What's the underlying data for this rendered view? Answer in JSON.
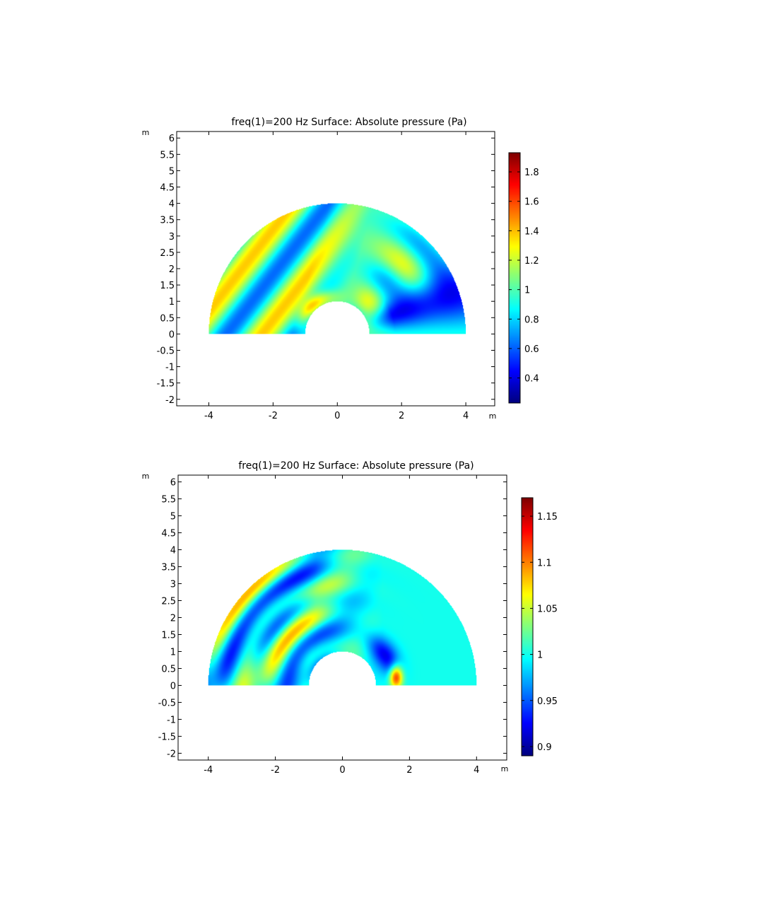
{
  "chart_data": [
    {
      "type": "heatmap",
      "title": "freq(1)=200 Hz   Surface: Absolute pressure (Pa)",
      "x_unit": "m",
      "y_unit": "m",
      "xlim": [
        -5,
        4.9
      ],
      "ylim": [
        -2.2,
        6.2
      ],
      "x_ticks": [
        -4,
        -2,
        0,
        2,
        4
      ],
      "y_ticks": [
        6,
        5.5,
        5,
        4.5,
        4,
        3.5,
        3,
        2.5,
        2,
        1.5,
        1,
        0.5,
        0,
        -0.5,
        -1,
        -1.5,
        -2
      ],
      "domain": {
        "shape": "half-annulus",
        "inner_radius": 1,
        "outer_radius": 4
      },
      "colorbar": {
        "min": 0.23,
        "max": 1.93,
        "ticks": [
          1.8,
          1.6,
          1.4,
          1.2,
          1,
          0.8,
          0.6,
          0.4
        ],
        "colormap": "jet"
      },
      "field_model": {
        "variant": "incident"
      }
    },
    {
      "type": "heatmap",
      "title": "freq(1)=200 Hz   Surface: Absolute pressure (Pa)",
      "x_unit": "m",
      "y_unit": "m",
      "xlim": [
        -4.9,
        4.9
      ],
      "ylim": [
        -2.2,
        6.2
      ],
      "x_ticks": [
        -4,
        -2,
        0,
        2,
        4
      ],
      "y_ticks": [
        6,
        5.5,
        5,
        4.5,
        4,
        3.5,
        3,
        2.5,
        2,
        1.5,
        1,
        0.5,
        0,
        -0.5,
        -1,
        -1.5,
        -2
      ],
      "domain": {
        "shape": "half-annulus",
        "inner_radius": 1,
        "outer_radius": 4
      },
      "colorbar": {
        "min": 0.89,
        "max": 1.17,
        "ticks": [
          1.15,
          1.1,
          1.05,
          1,
          0.95,
          0.9
        ],
        "colormap": "jet"
      },
      "field_model": {
        "variant": "scattered"
      }
    }
  ]
}
